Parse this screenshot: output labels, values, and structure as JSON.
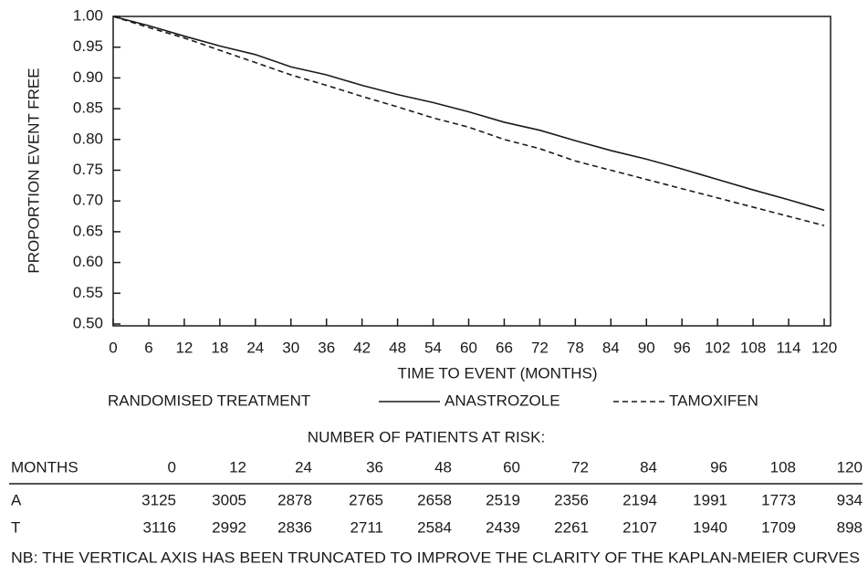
{
  "chart_data": {
    "type": "line",
    "y_label": "PROPORTION EVENT FREE",
    "x_label": "TIME TO EVENT (MONTHS)",
    "legend_title": "RANDOMISED TREATMENT",
    "x": [
      0,
      6,
      12,
      18,
      24,
      30,
      36,
      42,
      48,
      54,
      60,
      66,
      72,
      78,
      84,
      90,
      96,
      102,
      108,
      114,
      120
    ],
    "series": [
      {
        "name": "ANASTROZOLE",
        "color": "#1a1a1a",
        "dash": "solid",
        "values": [
          1.0,
          0.985,
          0.968,
          0.952,
          0.938,
          0.918,
          0.905,
          0.888,
          0.873,
          0.86,
          0.845,
          0.828,
          0.815,
          0.798,
          0.782,
          0.768,
          0.752,
          0.735,
          0.718,
          0.702,
          0.685
        ]
      },
      {
        "name": "TAMOXIFEN",
        "color": "#1a1a1a",
        "dash": "dashed",
        "values": [
          1.0,
          0.982,
          0.965,
          0.945,
          0.925,
          0.905,
          0.888,
          0.87,
          0.853,
          0.835,
          0.82,
          0.8,
          0.785,
          0.765,
          0.75,
          0.735,
          0.72,
          0.705,
          0.69,
          0.675,
          0.66
        ]
      }
    ],
    "xlim": [
      0,
      120
    ],
    "xticks": [
      0,
      6,
      12,
      18,
      24,
      30,
      36,
      42,
      48,
      54,
      60,
      66,
      72,
      78,
      84,
      90,
      96,
      102,
      108,
      114,
      120
    ],
    "ylim": [
      0.5,
      1.0
    ],
    "yticks": [
      {
        "value": 0.5,
        "label": "0.50"
      },
      0.55,
      {
        "value": 0.6,
        "label": "0.60"
      },
      0.65,
      {
        "value": 0.7,
        "label": "0.70"
      },
      0.75,
      {
        "value": 0.8,
        "label": "0.80"
      },
      0.85,
      {
        "value": 0.9,
        "label": "0.90"
      },
      0.95,
      {
        "value": 1.0,
        "label": "1.00"
      }
    ],
    "grid": false
  },
  "risk_table": {
    "title": "NUMBER OF PATIENTS AT RISK:",
    "header": [
      "MONTHS",
      "0",
      "12",
      "24",
      "36",
      "48",
      "60",
      "72",
      "84",
      "96",
      "108",
      "120"
    ],
    "rows": [
      [
        "A",
        "3125",
        "3005",
        "2878",
        "2765",
        "2658",
        "2519",
        "2356",
        "2194",
        "1991",
        "1773",
        "934"
      ],
      [
        "T",
        "3116",
        "2992",
        "2836",
        "2711",
        "2584",
        "2439",
        "2261",
        "2107",
        "1940",
        "1709",
        "898"
      ]
    ]
  },
  "note": "NB: THE VERTICAL AXIS HAS BEEN TRUNCATED TO IMPROVE THE CLARITY OF THE KAPLAN-MEIER CURVES"
}
